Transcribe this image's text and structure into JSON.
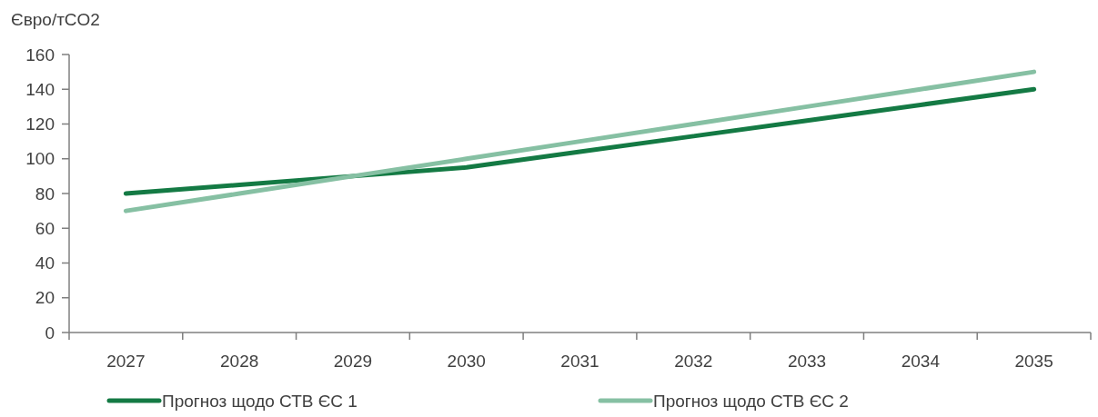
{
  "chart_data": {
    "type": "line",
    "ylabel": "Євро/тCO2",
    "categories": [
      "2027",
      "2028",
      "2029",
      "2030",
      "2031",
      "2032",
      "2033",
      "2034",
      "2035"
    ],
    "series": [
      {
        "name": "Прогноз щодо СТВ ЄС 1",
        "color": "#147a44",
        "values": [
          80,
          85,
          90,
          95,
          104,
          113,
          122,
          131,
          140
        ]
      },
      {
        "name": "Прогноз щодо СТВ ЄС 2",
        "color": "#86c0a3",
        "values": [
          70,
          80,
          90,
          100,
          110,
          120,
          130,
          140,
          150
        ]
      }
    ],
    "ylim": [
      0,
      160
    ],
    "yticks": [
      0,
      20,
      40,
      60,
      80,
      100,
      120,
      140,
      160
    ],
    "grid": false,
    "legend": "bottom",
    "marker": "none",
    "line_style": "solid"
  }
}
